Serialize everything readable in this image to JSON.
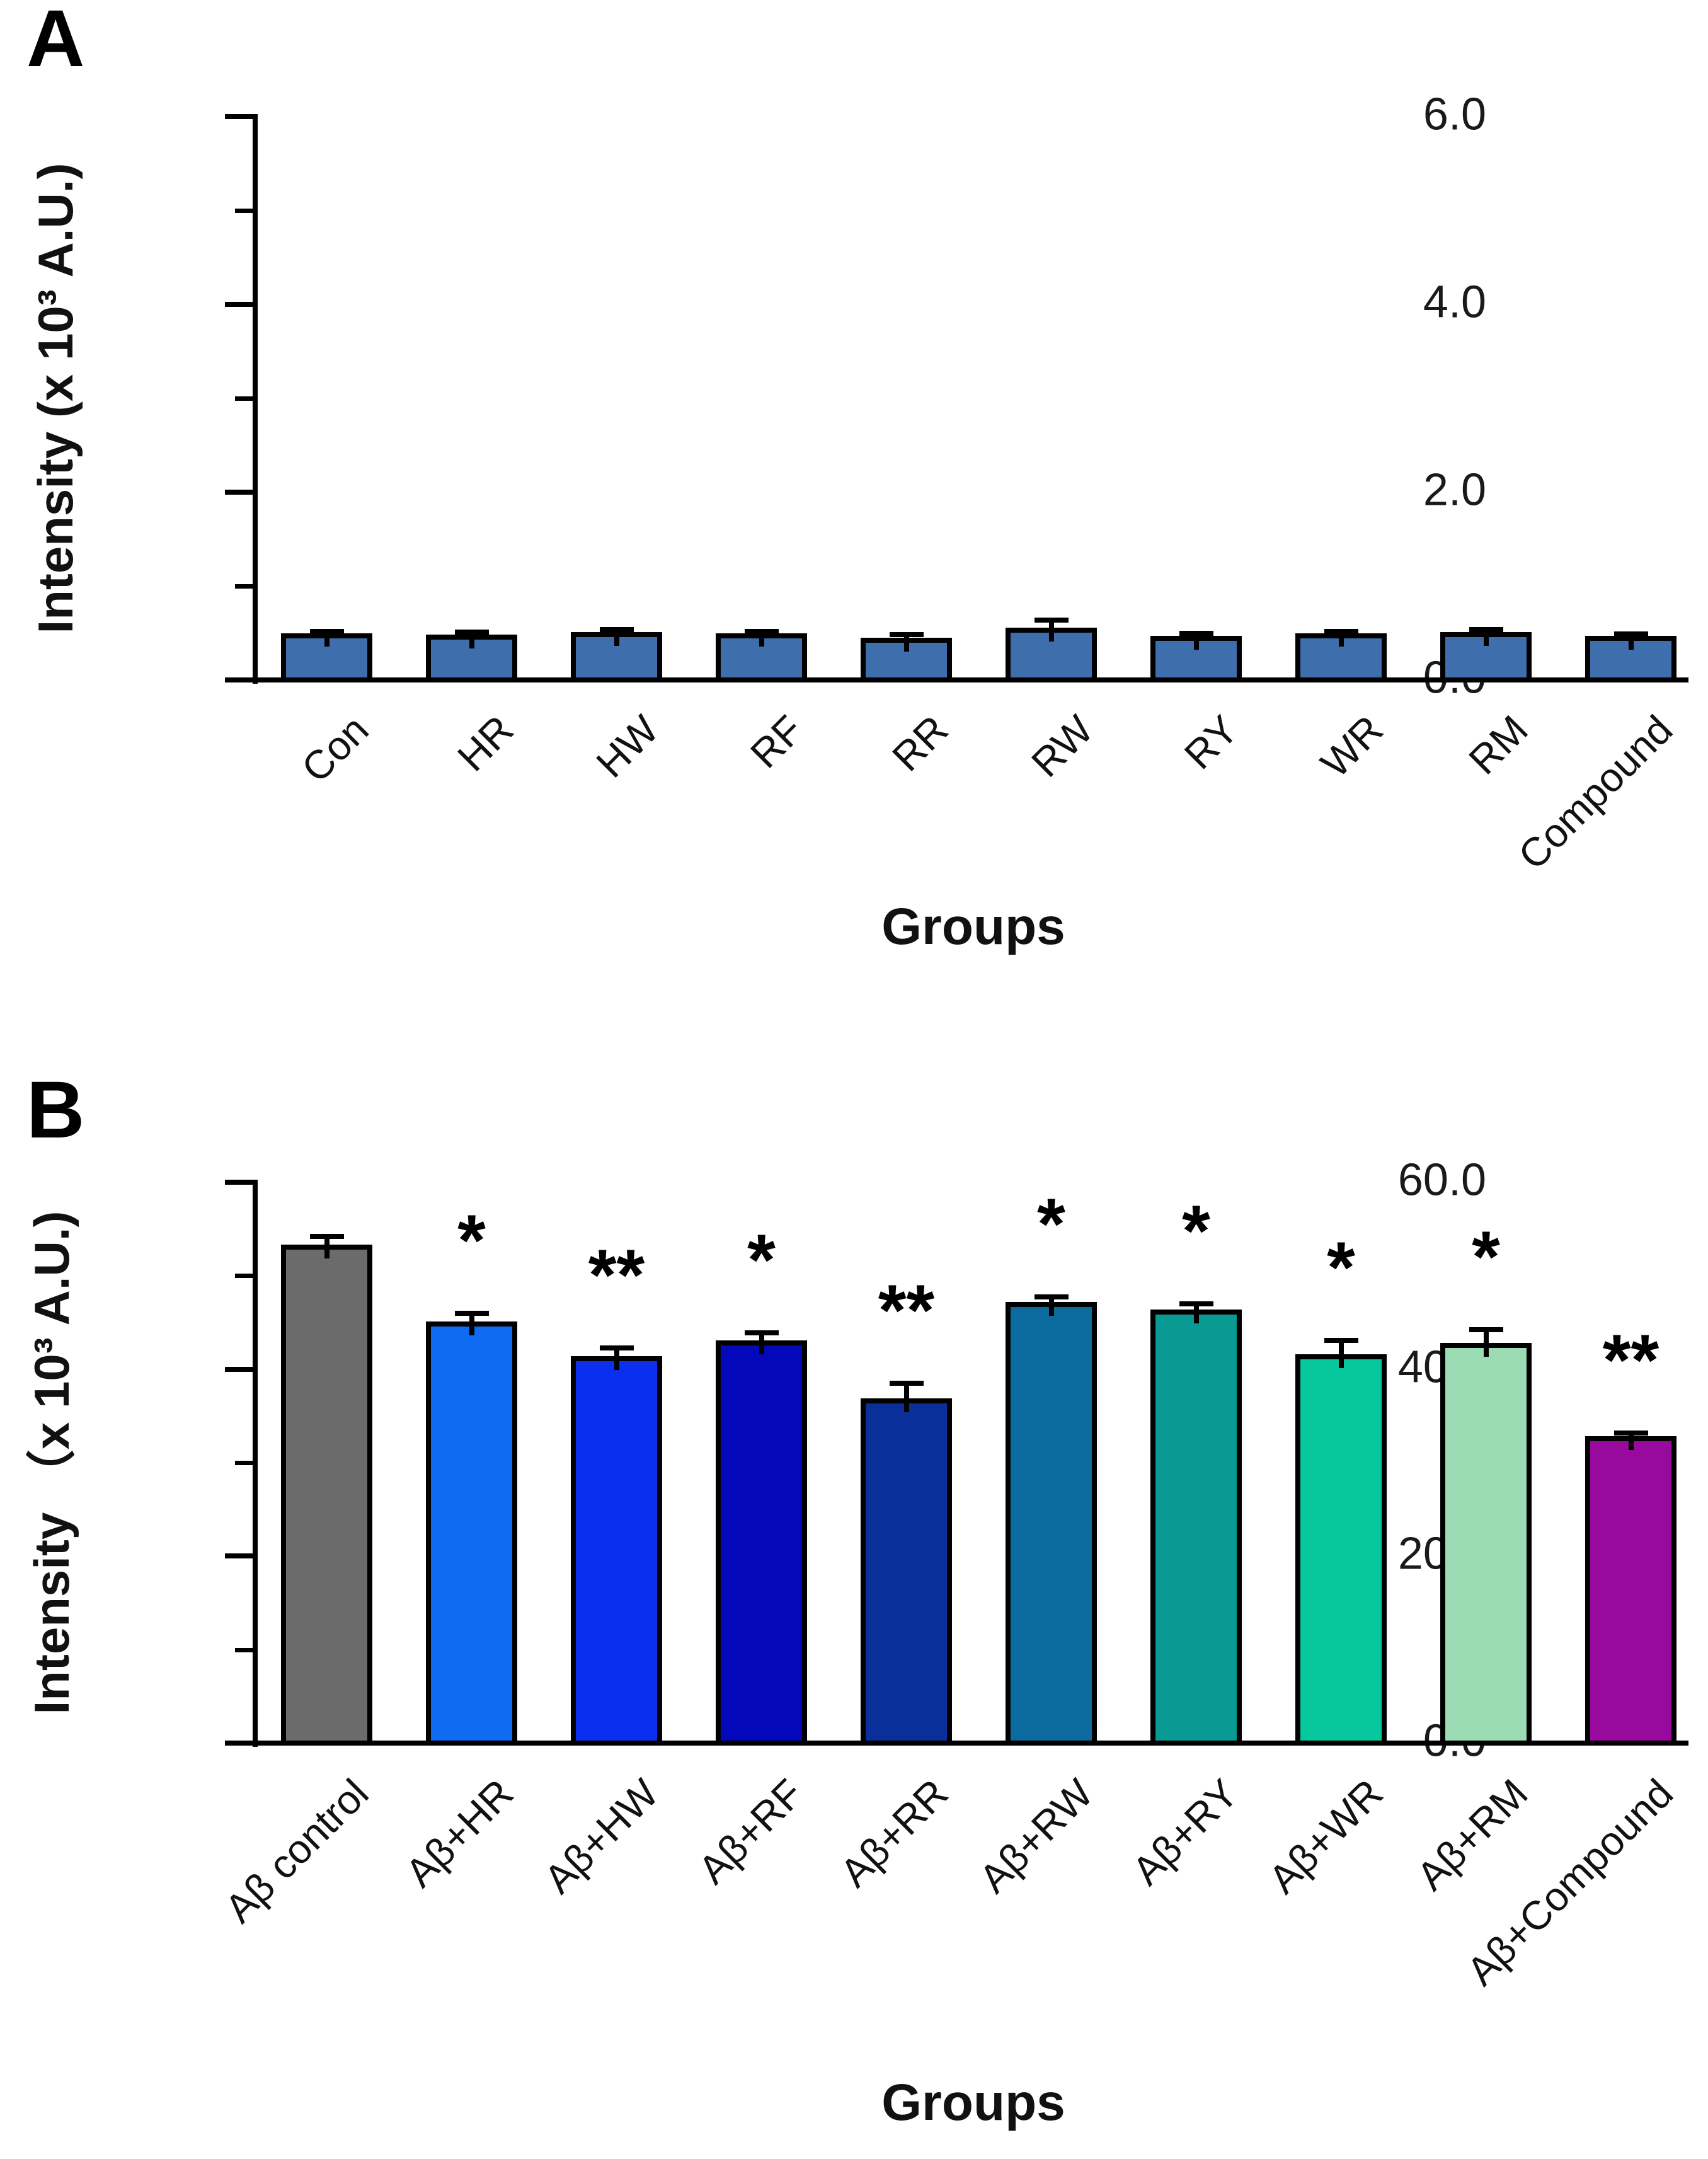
{
  "chart_data": [
    {
      "type": "bar",
      "panel_letter": "A",
      "y_axis_title": "Intensity (x 10³ A.U.)",
      "x_axis_title": "Groups",
      "categories": [
        "Con",
        "HR",
        "HW",
        "RF",
        "RR",
        "RW",
        "RY",
        "WR",
        "RM",
        "Compound"
      ],
      "values": [
        0.5,
        0.48,
        0.51,
        0.5,
        0.45,
        0.56,
        0.47,
        0.5,
        0.51,
        0.47
      ],
      "errors": [
        0.02,
        0.03,
        0.03,
        0.02,
        0.03,
        0.08,
        0.03,
        0.02,
        0.03,
        0.02
      ],
      "significance": [
        "",
        "",
        "",
        "",
        "",
        "",
        "",
        "",
        "",
        ""
      ],
      "bar_colors": [
        "#3E6EAC",
        "#3E6EAC",
        "#3E6EAC",
        "#3E6EAC",
        "#3E6EAC",
        "#3E6EAC",
        "#3E6EAC",
        "#3E6EAC",
        "#3E6EAC",
        "#3E6EAC"
      ],
      "ylim": [
        0,
        6
      ],
      "yticks": [
        0,
        2,
        4,
        6
      ],
      "ytick_labels": [
        "0.0",
        "2.0",
        "4.0",
        "6.0"
      ],
      "yticks_minor": [
        1,
        3,
        5
      ],
      "grid": false,
      "legend": null
    },
    {
      "type": "bar",
      "panel_letter": "B",
      "y_axis_title": "Intensity （x 10³ A.U.)",
      "x_axis_title": "Groups",
      "categories": [
        "Aβ control",
        "Aβ+HR",
        "Aβ+HW",
        "Aβ+RF",
        "Aβ+RR",
        "Aβ+RW",
        "Aβ+RY",
        "Aβ+WR",
        "Aβ+RM",
        "Aβ+Compound"
      ],
      "values": [
        53.3,
        45.1,
        41.4,
        43.1,
        36.9,
        47.2,
        46.4,
        41.6,
        42.8,
        32.8
      ],
      "errors": [
        0.9,
        0.9,
        0.9,
        0.8,
        1.6,
        0.5,
        0.6,
        1.5,
        1.4,
        0.4
      ],
      "significance": [
        "",
        "*",
        "**",
        "*",
        "**",
        "*",
        "*",
        "*",
        "*",
        "**"
      ],
      "bar_colors": [
        "#6B6B6B",
        "#0E6BF2",
        "#0B2FF0",
        "#0408BB",
        "#0A2F9B",
        "#0C6B9E",
        "#0A9A94",
        "#07C89C",
        "#9CDCB4",
        "#98099E"
      ],
      "ylim": [
        0,
        60
      ],
      "yticks": [
        0,
        20,
        40,
        60
      ],
      "ytick_labels": [
        "0.0",
        "20.0",
        "40.0",
        "60.0"
      ],
      "yticks_minor": [
        10,
        30,
        50
      ],
      "grid": false,
      "legend": null
    }
  ]
}
